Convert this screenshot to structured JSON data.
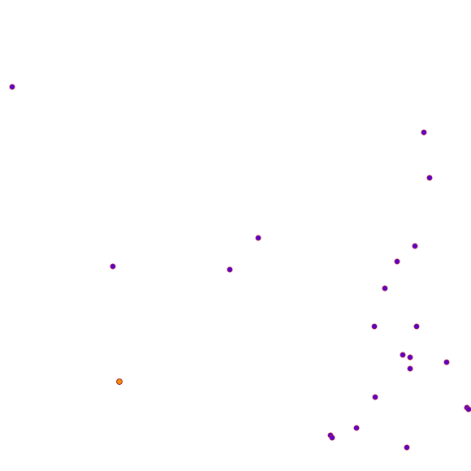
{
  "colors": {
    "background": "#ffffff",
    "point_fill": "#5a00c8",
    "point_stroke": "#c83232",
    "highlight_fill": "#ff8c00",
    "highlight_stroke": "#8b1a1a"
  },
  "points": {
    "count_regular": 24,
    "count_highlight": 1
  }
}
